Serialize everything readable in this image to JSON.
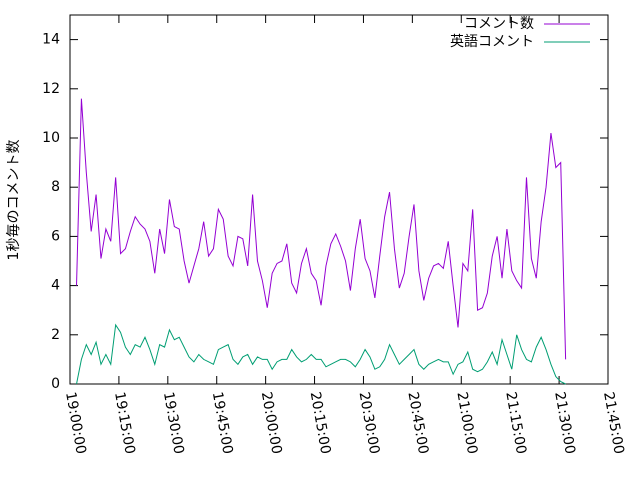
{
  "chart_data": {
    "type": "line",
    "ylabel": "1秒毎のコメント数",
    "x": [
      "19:02:00",
      "19:03:30",
      "19:05:00",
      "19:06:30",
      "19:08:00",
      "19:09:30",
      "19:11:00",
      "19:12:30",
      "19:14:00",
      "19:15:30",
      "19:17:00",
      "19:18:30",
      "19:20:00",
      "19:21:30",
      "19:23:00",
      "19:24:30",
      "19:26:00",
      "19:27:30",
      "19:29:00",
      "19:30:30",
      "19:32:00",
      "19:33:30",
      "19:35:00",
      "19:36:30",
      "19:38:00",
      "19:39:30",
      "19:41:00",
      "19:42:30",
      "19:44:00",
      "19:45:30",
      "19:47:00",
      "19:48:30",
      "19:50:00",
      "19:51:30",
      "19:53:00",
      "19:54:30",
      "19:56:00",
      "19:57:30",
      "19:59:00",
      "20:00:30",
      "20:02:00",
      "20:03:30",
      "20:05:00",
      "20:06:30",
      "20:08:00",
      "20:09:30",
      "20:11:00",
      "20:12:30",
      "20:14:00",
      "20:15:30",
      "20:17:00",
      "20:18:30",
      "20:20:00",
      "20:21:30",
      "20:23:00",
      "20:24:30",
      "20:26:00",
      "20:27:30",
      "20:29:00",
      "20:30:30",
      "20:32:00",
      "20:33:30",
      "20:35:00",
      "20:36:30",
      "20:38:00",
      "20:39:30",
      "20:41:00",
      "20:42:30",
      "20:44:00",
      "20:45:30",
      "20:47:00",
      "20:48:30",
      "20:50:00",
      "20:51:30",
      "20:53:00",
      "20:54:30",
      "20:56:00",
      "20:57:30",
      "20:59:00",
      "21:00:30",
      "21:02:00",
      "21:03:30",
      "21:05:00",
      "21:06:30",
      "21:08:00",
      "21:09:30",
      "21:11:00",
      "21:12:30",
      "21:14:00",
      "21:15:30",
      "21:17:00",
      "21:18:30",
      "21:20:00",
      "21:21:30",
      "21:23:00",
      "21:24:30",
      "21:26:00",
      "21:27:30",
      "21:29:00",
      "21:30:30",
      "21:32:00"
    ],
    "series": [
      {
        "name": "コメント数",
        "color": "#9400d3",
        "values": [
          4.0,
          11.6,
          8.6,
          6.2,
          7.7,
          5.1,
          6.3,
          5.8,
          8.4,
          5.3,
          5.5,
          6.2,
          6.8,
          6.5,
          6.3,
          5.8,
          4.5,
          6.3,
          5.3,
          7.5,
          6.4,
          6.3,
          5.0,
          4.1,
          4.8,
          5.5,
          6.6,
          5.2,
          5.5,
          7.1,
          6.7,
          5.2,
          4.8,
          6.0,
          5.9,
          4.8,
          7.7,
          5.0,
          4.2,
          3.1,
          4.5,
          4.9,
          5.0,
          5.7,
          4.1,
          3.7,
          4.9,
          5.5,
          4.5,
          4.2,
          3.2,
          4.8,
          5.7,
          6.1,
          5.6,
          5.0,
          3.8,
          5.5,
          6.7,
          5.1,
          4.6,
          3.5,
          5.2,
          6.8,
          7.8,
          5.5,
          3.9,
          4.5,
          6.0,
          7.3,
          4.6,
          3.4,
          4.3,
          4.8,
          4.9,
          4.7,
          5.8,
          4.0,
          2.3,
          4.9,
          4.6,
          7.1,
          3.0,
          3.1,
          3.7,
          5.2,
          6.0,
          4.3,
          6.3,
          4.6,
          4.2,
          3.9,
          8.4,
          5.1,
          4.3,
          6.6,
          8.0,
          10.2,
          8.8,
          9.0,
          1.0
        ]
      },
      {
        "name": "英語コメント",
        "color": "#009e73",
        "values": [
          0,
          1.0,
          1.6,
          1.2,
          1.7,
          0.8,
          1.2,
          0.8,
          2.4,
          2.1,
          1.5,
          1.2,
          1.6,
          1.5,
          1.9,
          1.4,
          0.8,
          1.6,
          1.5,
          2.2,
          1.8,
          1.9,
          1.5,
          1.1,
          0.9,
          1.2,
          1.0,
          0.9,
          0.8,
          1.4,
          1.5,
          1.6,
          1.0,
          0.8,
          1.1,
          1.2,
          0.8,
          1.1,
          1.0,
          1.0,
          0.6,
          0.9,
          1.0,
          1.0,
          1.4,
          1.1,
          0.9,
          1.0,
          1.2,
          1.0,
          1.0,
          0.7,
          0.8,
          0.9,
          1.0,
          1.0,
          0.9,
          0.7,
          1.0,
          1.4,
          1.1,
          0.6,
          0.7,
          1.0,
          1.6,
          1.2,
          0.8,
          1.0,
          1.2,
          1.4,
          0.8,
          0.6,
          0.8,
          0.9,
          1.0,
          0.9,
          0.9,
          0.4,
          0.8,
          0.9,
          1.3,
          0.6,
          0.5,
          0.6,
          0.9,
          1.3,
          0.8,
          1.8,
          1.2,
          0.6,
          2.0,
          1.4,
          1.0,
          0.9,
          1.5,
          1.9,
          1.4,
          0.8,
          0.3,
          0.1,
          0
        ]
      }
    ],
    "xlim": [
      "19:00:00",
      "21:45:00"
    ],
    "xticks": [
      "19:00:00",
      "19:15:00",
      "19:30:00",
      "19:45:00",
      "20:00:00",
      "20:15:00",
      "20:30:00",
      "20:45:00",
      "21:00:00",
      "21:15:00",
      "21:30:00",
      "21:45:00"
    ],
    "ylim": [
      0,
      15
    ],
    "yticks": [
      0,
      2,
      4,
      6,
      8,
      10,
      12,
      14
    ],
    "legend": "upper right"
  }
}
